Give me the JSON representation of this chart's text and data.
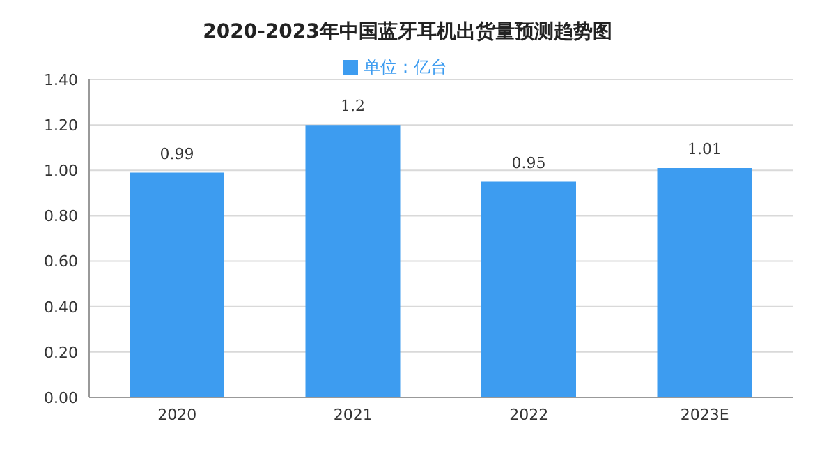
{
  "chart_data": {
    "type": "bar",
    "title": "2020-2023年中国蓝牙耳机出货量预测趋势图",
    "categories": [
      "2020",
      "2021",
      "2022",
      "2023E"
    ],
    "series": [
      {
        "name": "单位：亿台",
        "color": "#3d9cf0",
        "values": [
          0.99,
          1.2,
          0.95,
          1.01
        ]
      }
    ],
    "ylim": [
      0,
      1.4
    ],
    "yticks": [
      {
        "value": 0,
        "label": "0.00"
      },
      {
        "value": 0.2,
        "label": "0.20"
      },
      {
        "value": 0.4,
        "label": "0.40"
      },
      {
        "value": 0.6,
        "label": "0.60"
      },
      {
        "value": 0.8,
        "label": "0.80"
      },
      {
        "value": 1,
        "label": "1.00"
      },
      {
        "value": 1.2,
        "label": "1.20"
      },
      {
        "value": 1.4,
        "label": "1.40"
      }
    ],
    "grid": "y",
    "legend": "top",
    "data_labels": true
  }
}
